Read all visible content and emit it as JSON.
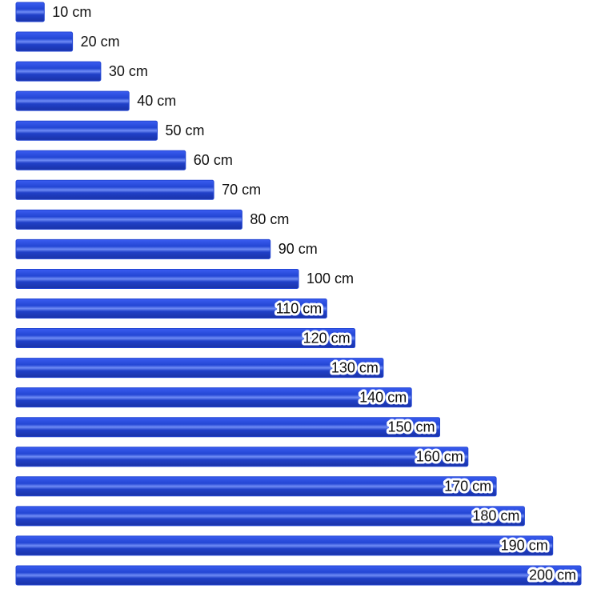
{
  "chart_data": {
    "type": "bar",
    "orientation": "horizontal",
    "color": "#2346d4",
    "values": [
      10,
      20,
      30,
      40,
      50,
      60,
      70,
      80,
      90,
      100,
      110,
      120,
      130,
      140,
      150,
      160,
      170,
      180,
      190,
      200
    ],
    "value_labels": [
      "10 cm",
      "20 cm",
      "30 cm",
      "40 cm",
      "50 cm",
      "60 cm",
      "70 cm",
      "80 cm",
      "90 cm",
      "100 cm",
      "110 cm",
      "120 cm",
      "130 cm",
      "140 cm",
      "150 cm",
      "160 cm",
      "170 cm",
      "180 cm",
      "190 cm",
      "200 cm"
    ]
  }
}
